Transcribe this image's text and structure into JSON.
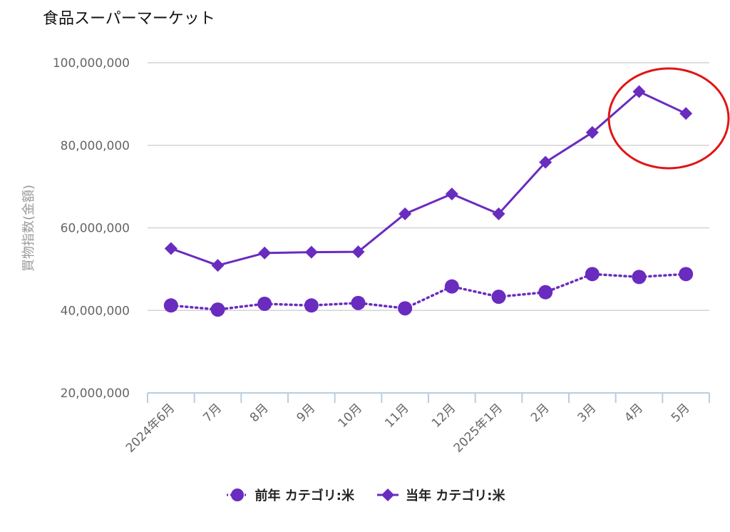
{
  "chart_data": {
    "type": "line",
    "title": "食品スーパーマーケット",
    "ylabel": "買物指数(金額)",
    "xlabel": "",
    "ylim": [
      20000000,
      100000000
    ],
    "yticks": [
      20000000,
      40000000,
      60000000,
      80000000,
      100000000
    ],
    "ytick_labels": [
      "20,000,000",
      "40,000,000",
      "60,000,000",
      "80,000,000",
      "100,000,000"
    ],
    "categories": [
      "2024年6月",
      "7月",
      "8月",
      "9月",
      "10月",
      "11月",
      "12月",
      "2025年1月",
      "2月",
      "3月",
      "4月",
      "5月"
    ],
    "grid": true,
    "legend_position": "bottom",
    "series": [
      {
        "name": "前年 カテゴリ:米",
        "marker": "circle",
        "line_style": "dotted",
        "color": "#6a2bbf",
        "values": [
          41200000,
          40200000,
          41600000,
          41200000,
          41800000,
          40500000,
          45800000,
          43300000,
          44400000,
          48800000,
          48100000,
          48800000
        ]
      },
      {
        "name": "当年 カテゴリ:米",
        "marker": "diamond",
        "line_style": "solid",
        "color": "#6a2bbf",
        "values": [
          55000000,
          50900000,
          53900000,
          54100000,
          54200000,
          63400000,
          68200000,
          63400000,
          75900000,
          83100000,
          93000000,
          87700000
        ]
      }
    ],
    "highlight_color": "#e01515"
  }
}
